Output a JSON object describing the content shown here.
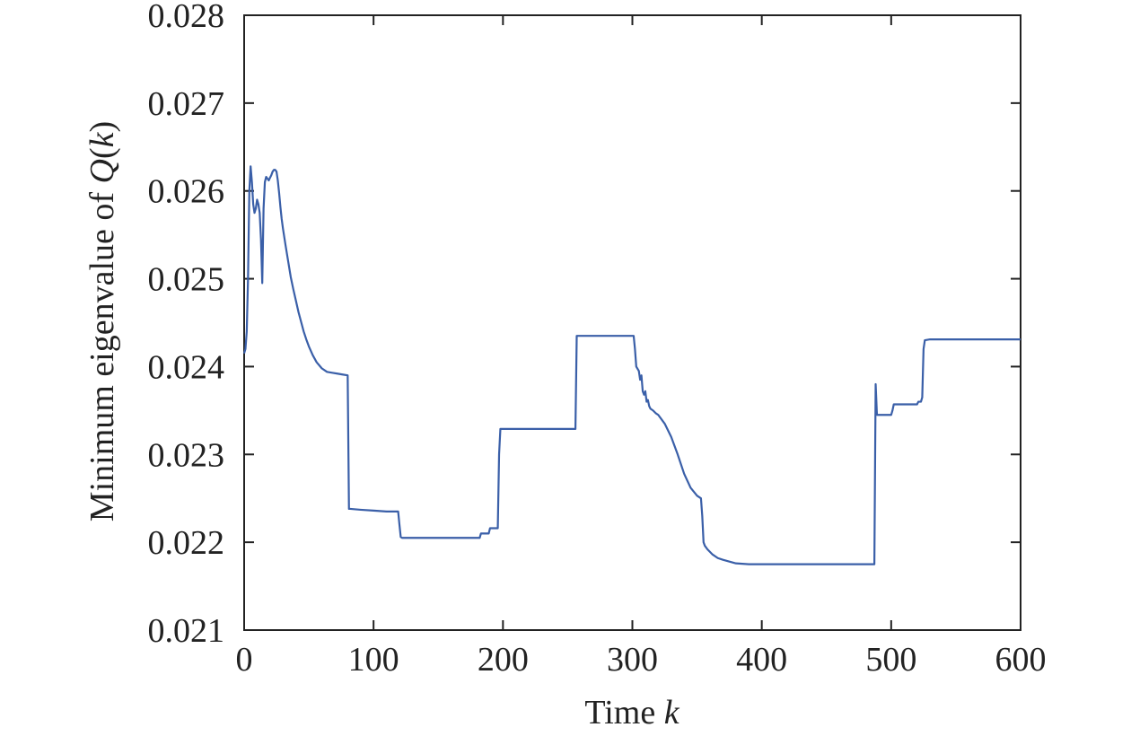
{
  "chart_data": {
    "type": "line",
    "xlabel": {
      "prefix": "Time ",
      "italic": "k",
      "suffix": ""
    },
    "ylabel": {
      "prefix": "Minimum eigenvalue of ",
      "italic": "Q",
      "middle": "(",
      "italic2": "k",
      "suffix": ")"
    },
    "xlim": [
      0,
      600
    ],
    "ylim": [
      0.021,
      0.028
    ],
    "x_ticks": [
      {
        "value": 0,
        "label": "0"
      },
      {
        "value": 100,
        "label": "100"
      },
      {
        "value": 200,
        "label": "200"
      },
      {
        "value": 300,
        "label": "300"
      },
      {
        "value": 400,
        "label": "400"
      },
      {
        "value": 500,
        "label": "500"
      },
      {
        "value": 600,
        "label": "600"
      }
    ],
    "y_ticks": [
      {
        "value": 0.021,
        "label": "0.021"
      },
      {
        "value": 0.022,
        "label": "0.022"
      },
      {
        "value": 0.023,
        "label": "0.023"
      },
      {
        "value": 0.024,
        "label": "0.024"
      },
      {
        "value": 0.025,
        "label": "0.025"
      },
      {
        "value": 0.026,
        "label": "0.026"
      },
      {
        "value": 0.027,
        "label": "0.027"
      },
      {
        "value": 0.028,
        "label": "0.028"
      }
    ],
    "grid": false,
    "line_color": "#3a5fa8",
    "axis_color": "#222222",
    "series": [
      {
        "x": [
          0,
          1,
          2,
          3,
          4,
          5,
          6,
          7,
          8,
          9,
          10,
          11,
          12,
          13,
          14,
          15,
          16,
          17,
          18,
          19,
          20,
          21,
          22,
          23,
          24,
          25,
          26,
          27,
          28,
          29,
          30,
          32,
          34,
          36,
          38,
          40,
          42,
          44,
          46,
          48,
          50,
          53,
          56,
          60,
          64,
          68,
          72,
          76,
          80,
          81,
          82,
          90,
          100,
          110,
          119,
          120,
          121,
          122,
          130,
          150,
          170,
          182,
          183,
          189,
          190,
          195,
          196,
          197,
          198,
          220,
          240,
          256,
          257,
          258,
          270,
          285,
          301,
          302,
          303,
          305,
          306,
          307,
          308,
          309,
          310,
          311,
          312,
          313,
          314,
          316,
          318,
          320,
          325,
          330,
          335,
          340,
          345,
          350,
          353,
          354,
          355,
          356,
          358,
          362,
          366,
          370,
          375,
          380,
          390,
          400,
          420,
          440,
          460,
          487,
          488,
          489,
          500,
          501,
          502,
          520,
          521,
          523,
          524,
          525,
          526,
          530,
          560,
          600
        ],
        "y": [
          0.02415,
          0.0242,
          0.0244,
          0.025,
          0.026,
          0.02628,
          0.0261,
          0.02585,
          0.02575,
          0.0258,
          0.0259,
          0.02585,
          0.02575,
          0.02545,
          0.02495,
          0.0258,
          0.0261,
          0.02616,
          0.02614,
          0.02612,
          0.02615,
          0.02618,
          0.02622,
          0.02624,
          0.02624,
          0.02622,
          0.02612,
          0.02598,
          0.02582,
          0.02568,
          0.02557,
          0.02538,
          0.0252,
          0.02502,
          0.02488,
          0.02475,
          0.02462,
          0.02451,
          0.0244,
          0.02431,
          0.02423,
          0.02413,
          0.02405,
          0.02398,
          0.02394,
          0.02393,
          0.02392,
          0.02391,
          0.0239,
          0.02238,
          0.02238,
          0.02237,
          0.02236,
          0.02235,
          0.02235,
          0.0222,
          0.02206,
          0.02205,
          0.02205,
          0.02205,
          0.02205,
          0.02205,
          0.0221,
          0.0221,
          0.02216,
          0.02216,
          0.02216,
          0.023,
          0.02329,
          0.02329,
          0.02329,
          0.02329,
          0.02435,
          0.02435,
          0.02435,
          0.02435,
          0.02435,
          0.0242,
          0.024,
          0.02395,
          0.02385,
          0.0239,
          0.02372,
          0.02368,
          0.02372,
          0.0236,
          0.02362,
          0.02355,
          0.02352,
          0.0235,
          0.02347,
          0.02345,
          0.02335,
          0.0232,
          0.023,
          0.02278,
          0.02262,
          0.02253,
          0.0225,
          0.0223,
          0.022,
          0.02196,
          0.02192,
          0.02186,
          0.02182,
          0.0218,
          0.02178,
          0.02176,
          0.02175,
          0.02175,
          0.02175,
          0.02175,
          0.02175,
          0.02175,
          0.0238,
          0.02345,
          0.02345,
          0.0235,
          0.02357,
          0.02357,
          0.0236,
          0.0236,
          0.02365,
          0.0242,
          0.0243,
          0.02431,
          0.02431,
          0.02431
        ]
      }
    ]
  }
}
